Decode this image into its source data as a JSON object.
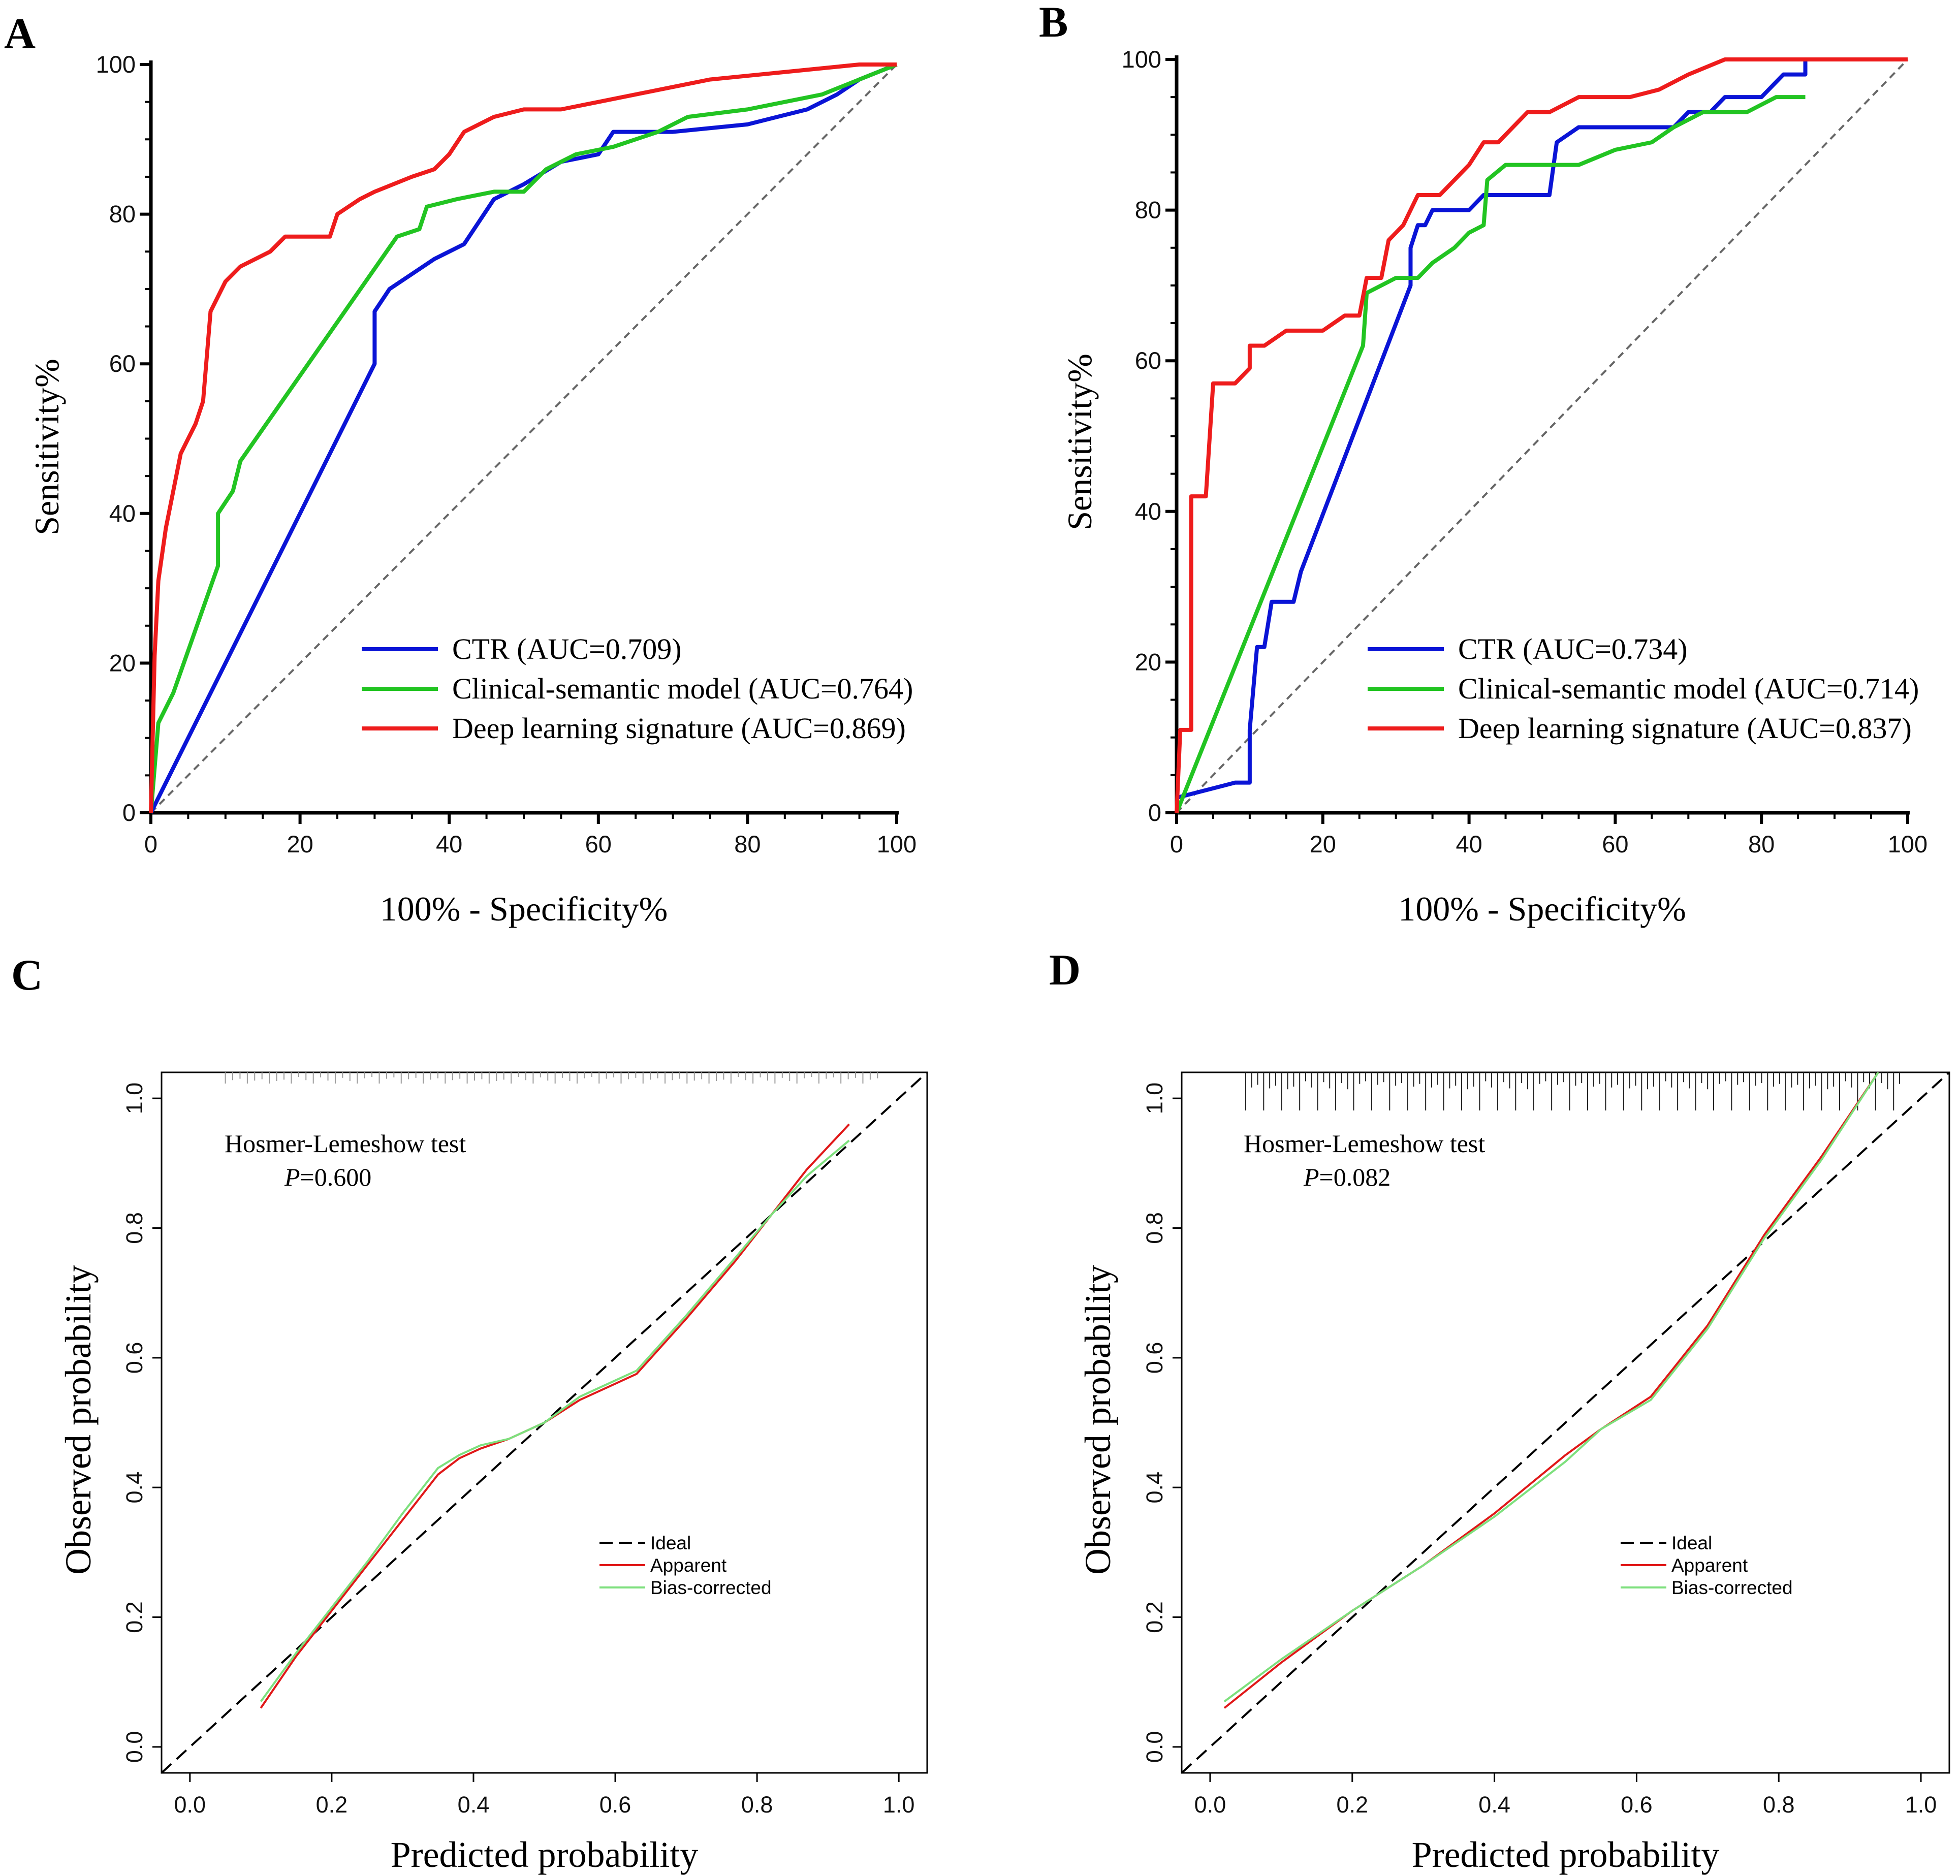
{
  "panels": [
    {
      "letter": "A"
    },
    {
      "letter": "B"
    },
    {
      "letter": "C"
    },
    {
      "letter": "D"
    }
  ],
  "chart_data": [
    {
      "panel": "A",
      "type": "line",
      "xlabel": "100% - Specificity%",
      "ylabel": "Sensitivity%",
      "xlim": [
        0,
        100
      ],
      "ylim": [
        0,
        100
      ],
      "xticks": [
        0,
        20,
        40,
        60,
        80,
        100
      ],
      "yticks": [
        0,
        20,
        40,
        60,
        80,
        100
      ],
      "reference_line": {
        "style": "dashed",
        "color": "#666666"
      },
      "legend_position": "bottom-right",
      "series": [
        {
          "name": "CTR (AUC=0.709)",
          "color": "#0a14d6",
          "x": [
            0,
            30,
            30,
            32,
            35,
            38,
            40,
            42,
            44,
            46,
            50,
            55,
            60,
            62,
            70,
            80,
            88,
            92,
            95,
            100
          ],
          "y": [
            0,
            60,
            67,
            70,
            72,
            74,
            75,
            76,
            79,
            82,
            84,
            87,
            88,
            91,
            91,
            92,
            94,
            96,
            98,
            100
          ]
        },
        {
          "name": "Clinical-semantic model (AUC=0.764)",
          "color": "#22c422",
          "x": [
            0,
            1,
            3,
            9,
            9,
            11,
            12,
            33,
            36,
            37,
            41,
            46,
            50,
            53,
            57,
            62,
            68,
            72,
            80,
            90,
            95,
            100
          ],
          "y": [
            0,
            12,
            16,
            33,
            40,
            43,
            47,
            77,
            78,
            81,
            82,
            83,
            83,
            86,
            88,
            89,
            91,
            93,
            94,
            96,
            98,
            100
          ]
        },
        {
          "name": "Deep learning signature (AUC=0.869)",
          "color": "#ee1c1c",
          "x": [
            0,
            0.5,
            1,
            2,
            3,
            4,
            5,
            6,
            7,
            8,
            9,
            10,
            12,
            14,
            16,
            18,
            20,
            24,
            25,
            28,
            30,
            35,
            38,
            40,
            42,
            44,
            46,
            50,
            55,
            60,
            65,
            70,
            75,
            85,
            95,
            100
          ],
          "y": [
            0,
            21,
            31,
            38,
            43,
            48,
            50,
            52,
            55,
            67,
            69,
            71,
            73,
            74,
            75,
            77,
            77,
            77,
            80,
            82,
            83,
            85,
            86,
            88,
            91,
            92,
            93,
            94,
            94,
            95,
            96,
            97,
            98,
            99,
            100,
            100
          ]
        }
      ]
    },
    {
      "panel": "B",
      "type": "line",
      "xlabel": "100% - Specificity%",
      "ylabel": "Sensitivity%",
      "xlim": [
        0,
        100
      ],
      "ylim": [
        0,
        100
      ],
      "xticks": [
        0,
        20,
        40,
        60,
        80,
        100
      ],
      "yticks": [
        0,
        20,
        40,
        60,
        80,
        100
      ],
      "reference_line": {
        "style": "dashed",
        "color": "#666666"
      },
      "legend_position": "bottom-right",
      "series": [
        {
          "name": "CTR (AUC=0.734)",
          "color": "#0a14d6",
          "x": [
            0,
            8,
            10,
            10,
            11,
            12,
            13,
            14,
            16,
            17,
            32,
            32,
            33,
            34,
            35,
            38,
            40,
            42,
            45,
            48,
            51,
            52,
            55,
            68,
            70,
            73,
            75,
            78,
            80,
            83,
            86,
            86,
            88,
            100
          ],
          "y": [
            2,
            4,
            4,
            11,
            22,
            22,
            28,
            28,
            28,
            32,
            70,
            75,
            78,
            78,
            80,
            80,
            80,
            82,
            82,
            82,
            82,
            89,
            91,
            91,
            93,
            93,
            95,
            95,
            95,
            98,
            98,
            100,
            100,
            100
          ]
        },
        {
          "name": "Clinical-semantic model (AUC=0.714)",
          "color": "#22c422",
          "x": [
            0,
            25.5,
            26,
            28,
            30,
            33,
            35,
            38,
            40,
            42,
            42.5,
            45,
            50,
            55,
            60,
            65,
            68,
            72,
            75,
            78,
            82,
            86
          ],
          "y": [
            0,
            62,
            69,
            70,
            71,
            71,
            73,
            75,
            77,
            78,
            84,
            86,
            86,
            86,
            88,
            89,
            91,
            93,
            93,
            93,
            95,
            95
          ]
        },
        {
          "name": "Deep learning signature (AUC=0.837)",
          "color": "#ee1c1c",
          "x": [
            0,
            0.5,
            2,
            2,
            4,
            5,
            8,
            10,
            10,
            12,
            15,
            17,
            20,
            23,
            25,
            26,
            28,
            29,
            31,
            33,
            36,
            38,
            40,
            42,
            44,
            46,
            48,
            51,
            55,
            62,
            66,
            70,
            75,
            80,
            100
          ],
          "y": [
            0,
            11,
            11,
            42,
            42,
            57,
            57,
            59,
            62,
            62,
            64,
            64,
            64,
            66,
            66,
            71,
            71,
            76,
            78,
            82,
            82,
            84,
            86,
            89,
            89,
            91,
            93,
            93,
            95,
            95,
            96,
            98,
            100,
            100,
            100
          ]
        }
      ]
    },
    {
      "panel": "C",
      "type": "line",
      "xlabel": "Predicted probability",
      "ylabel": "Observed probability",
      "xlim": [
        -0.04,
        1.04
      ],
      "ylim": [
        -0.04,
        1.04
      ],
      "xticks": [
        "0.0",
        "0.2",
        "0.4",
        "0.6",
        "0.8",
        "1.0"
      ],
      "yticks": [
        "0.0",
        "0.2",
        "0.4",
        "0.6",
        "0.8",
        "1.0"
      ],
      "test_name": "Hosmer-Lemeshow test",
      "p_label": "P",
      "p_value": "=0.600",
      "legend_position": "right",
      "series": [
        {
          "name": "Ideal",
          "color": "#000000",
          "style": "dashed",
          "x": [
            -0.04,
            1.04
          ],
          "y": [
            -0.04,
            1.04
          ]
        },
        {
          "name": "Apparent",
          "color": "#e01818",
          "x": [
            0.1,
            0.15,
            0.2,
            0.25,
            0.3,
            0.35,
            0.38,
            0.41,
            0.45,
            0.5,
            0.55,
            0.6,
            0.63,
            0.7,
            0.77,
            0.82,
            0.87,
            0.93
          ],
          "y": [
            0.06,
            0.14,
            0.21,
            0.28,
            0.35,
            0.42,
            0.445,
            0.46,
            0.475,
            0.5,
            0.535,
            0.56,
            0.575,
            0.66,
            0.75,
            0.82,
            0.89,
            0.96
          ]
        },
        {
          "name": "Bias-corrected",
          "color": "#7de07d",
          "x": [
            0.1,
            0.15,
            0.2,
            0.25,
            0.3,
            0.35,
            0.38,
            0.41,
            0.45,
            0.5,
            0.55,
            0.6,
            0.63,
            0.7,
            0.77,
            0.82,
            0.87,
            0.93
          ],
          "y": [
            0.07,
            0.145,
            0.215,
            0.285,
            0.36,
            0.43,
            0.45,
            0.465,
            0.475,
            0.5,
            0.54,
            0.565,
            0.58,
            0.665,
            0.755,
            0.82,
            0.88,
            0.935
          ]
        }
      ]
    },
    {
      "panel": "D",
      "type": "line",
      "xlabel": "Predicted probability",
      "ylabel": "Observed probability",
      "xlim": [
        -0.04,
        1.04
      ],
      "ylim": [
        -0.04,
        1.04
      ],
      "xticks": [
        "0.0",
        "0.2",
        "0.4",
        "0.6",
        "0.8",
        "1.0"
      ],
      "yticks": [
        "0.0",
        "0.2",
        "0.4",
        "0.6",
        "0.8",
        "1.0"
      ],
      "test_name": "Hosmer-Lemeshow test",
      "p_label": "P",
      "p_value": "=0.082",
      "legend_position": "right",
      "series": [
        {
          "name": "Ideal",
          "color": "#000000",
          "style": "dashed",
          "x": [
            -0.04,
            1.04
          ],
          "y": [
            -0.04,
            1.04
          ]
        },
        {
          "name": "Apparent",
          "color": "#e01818",
          "x": [
            0.02,
            0.1,
            0.2,
            0.3,
            0.4,
            0.5,
            0.55,
            0.62,
            0.7,
            0.78,
            0.86,
            0.94
          ],
          "y": [
            0.06,
            0.13,
            0.21,
            0.28,
            0.36,
            0.45,
            0.49,
            0.54,
            0.65,
            0.79,
            0.91,
            1.04
          ]
        },
        {
          "name": "Bias-corrected",
          "color": "#7de07d",
          "x": [
            0.02,
            0.1,
            0.2,
            0.3,
            0.4,
            0.5,
            0.55,
            0.62,
            0.7,
            0.78,
            0.86,
            0.94
          ],
          "y": [
            0.07,
            0.135,
            0.21,
            0.28,
            0.355,
            0.44,
            0.49,
            0.535,
            0.645,
            0.785,
            0.905,
            1.04
          ]
        }
      ]
    }
  ]
}
